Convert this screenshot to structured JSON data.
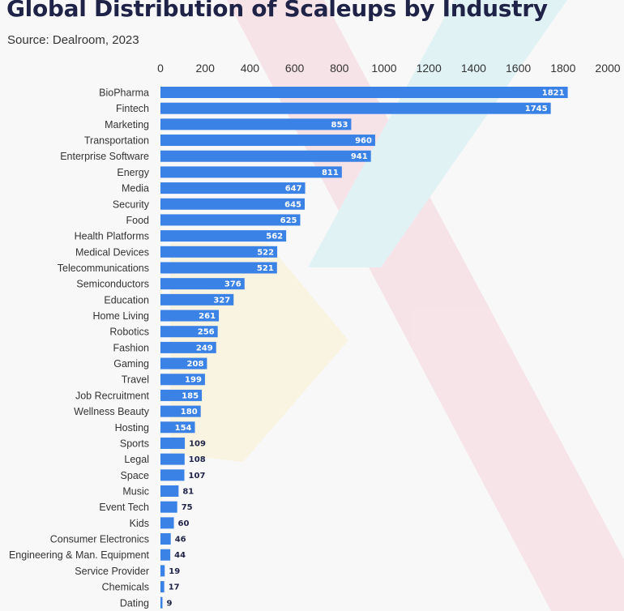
{
  "header": {
    "title": "Global Distribution of Scaleups by Industry",
    "source": "Source: Dealroom, 2023"
  },
  "colors": {
    "bar": "#3b82e6",
    "title": "#1f2347",
    "background": "#f8f8f8"
  },
  "chart_data": {
    "type": "bar",
    "orientation": "horizontal",
    "title": "Global Distribution of Scaleups by Industry",
    "subtitle": "Source: Dealroom, 2023",
    "xlim": [
      0,
      2000
    ],
    "xticks": [
      0,
      200,
      400,
      600,
      800,
      1000,
      1200,
      1400,
      1600,
      1800,
      2000
    ],
    "x_axis_position": "top",
    "grid": false,
    "categories": [
      "BioPharma",
      "Fintech",
      "Marketing",
      "Transportation",
      "Enterprise Software",
      "Energy",
      "Media",
      "Security",
      "Food",
      "Health Platforms",
      "Medical Devices",
      "Telecommunications",
      "Semiconductors",
      "Education",
      "Home Living",
      "Robotics",
      "Fashion",
      "Gaming",
      "Travel",
      "Job Recruitment",
      "Wellness Beauty",
      "Hosting",
      "Sports",
      "Legal",
      "Space",
      "Music",
      "Event Tech",
      "Kids",
      "Consumer Electronics",
      "Engineering & Man. Equipment",
      "Service Provider",
      "Chemicals",
      "Dating"
    ],
    "values": [
      1821,
      1745,
      853,
      960,
      941,
      811,
      647,
      645,
      625,
      562,
      522,
      521,
      376,
      327,
      261,
      256,
      249,
      208,
      199,
      185,
      180,
      154,
      109,
      108,
      107,
      81,
      75,
      60,
      46,
      44,
      19,
      17,
      9
    ]
  }
}
